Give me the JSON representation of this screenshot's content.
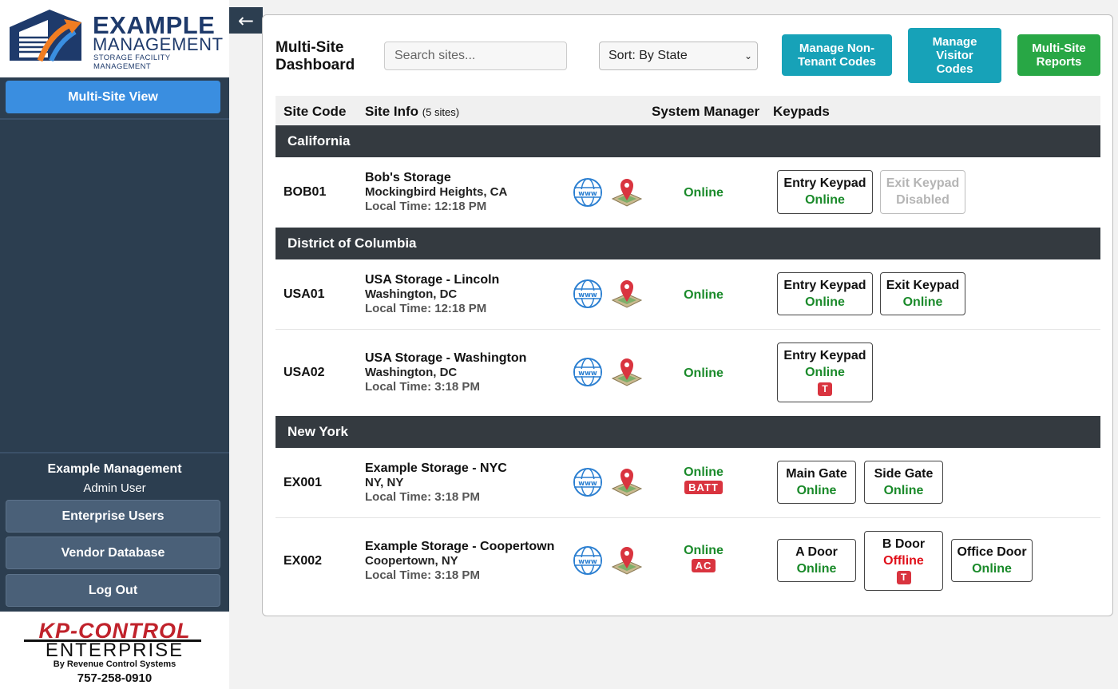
{
  "brand": {
    "logo_title": "EXAMPLE",
    "logo_subtitle": "MANAGEMENT",
    "logo_tagline": "STORAGE FACILITY MANAGEMENT",
    "footer_name": "KP-CONTROL",
    "footer_product": "ENTERPRISE",
    "footer_by": "By Revenue Control Systems",
    "footer_phone": "757-258-0910"
  },
  "sidebar": {
    "multi_site_label": "Multi-Site View",
    "account_name": "Example Management",
    "account_role": "Admin User",
    "buttons": [
      "Enterprise Users",
      "Vendor Database",
      "Log Out"
    ],
    "collapse_icon": "←"
  },
  "header": {
    "title_line1": "Multi-Site",
    "title_line2": "Dashboard",
    "search_placeholder": "Search sites...",
    "sort_value": "Sort: By State",
    "buttons": [
      {
        "line1": "Manage Non-",
        "line2": "Tenant Codes",
        "line3": "",
        "color": "#17a2b8"
      },
      {
        "line1": "Manage",
        "line2": "Visitor",
        "line3": "Codes",
        "color": "#17a2b8"
      },
      {
        "line1": "Multi-Site",
        "line2": "Reports",
        "line3": "",
        "color": "#28a745"
      }
    ]
  },
  "table": {
    "col_code": "Site Code",
    "col_info": "Site Info",
    "col_info_count": "(5 sites)",
    "col_manager": "System Manager",
    "col_keypads": "Keypads"
  },
  "groups": [
    "California",
    "District of Columbia",
    "New York"
  ],
  "sites": [
    {
      "code": "BOB01",
      "name": "Bob's Storage",
      "city": "Mockingbird Heights, CA",
      "time": "Local Time: 12:18 PM",
      "manager": "Online",
      "manager_badge": "",
      "keypads": [
        {
          "name": "Entry Keypad",
          "status": "Online"
        },
        {
          "name": "Exit Keypad",
          "status": "Disabled"
        }
      ]
    },
    {
      "code": "USA01",
      "name": "USA Storage - Lincoln",
      "city": "Washington, DC",
      "time": "Local Time: 12:18 PM",
      "manager": "Online",
      "manager_badge": "",
      "keypads": [
        {
          "name": "Entry Keypad",
          "status": "Online"
        },
        {
          "name": "Exit Keypad",
          "status": "Online"
        }
      ]
    },
    {
      "code": "USA02",
      "name": "USA Storage - Washington",
      "city": "Washington, DC",
      "time": "Local Time: 3:18 PM",
      "manager": "Online",
      "manager_badge": "",
      "keypads": [
        {
          "name": "Entry Keypad",
          "status": "Online",
          "badge": "T"
        }
      ]
    },
    {
      "code": "EX001",
      "name": "Example Storage - NYC",
      "city": "NY, NY",
      "time": "Local Time: 3:18 PM",
      "manager": "Online",
      "manager_badge": "BATT",
      "keypads": [
        {
          "name": "Main Gate",
          "status": "Online"
        },
        {
          "name": "Side Gate",
          "status": "Online"
        }
      ]
    },
    {
      "code": "EX002",
      "name": "Example Storage - Coopertown",
      "city": "Coopertown, NY",
      "time": "Local Time: 3:18 PM",
      "manager": "Online",
      "manager_badge": "AC",
      "keypads": [
        {
          "name": "A Door",
          "status": "Online"
        },
        {
          "name": "B Door",
          "status": "Offline",
          "badge": "T"
        },
        {
          "name": "Office Door",
          "status": "Online"
        }
      ]
    }
  ],
  "icons": {
    "website": "globe-www-icon",
    "map": "map-pin-icon"
  },
  "colors": {
    "sidebar": "#2c3e50",
    "primary": "#3a8ee0",
    "teal": "#17a2b8",
    "green": "#28a745",
    "online": "#1a8a2a",
    "offline": "#e0101a",
    "alert": "#d9343f"
  }
}
